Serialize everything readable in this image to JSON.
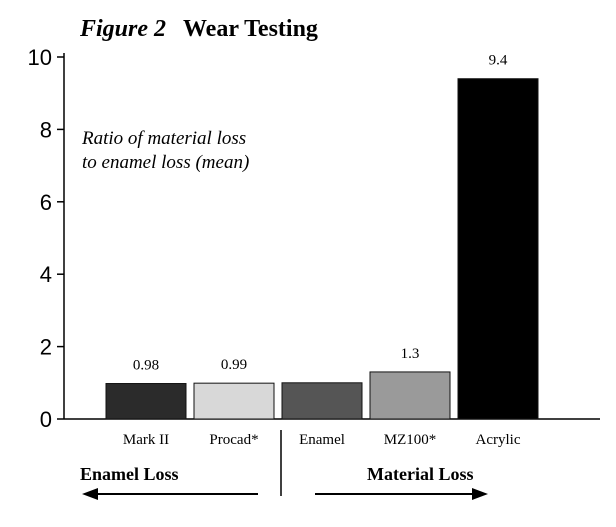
{
  "chart_data": {
    "type": "bar",
    "title_prefix": "Figure 2",
    "title": "Wear Testing",
    "annotation": [
      "Ratio of material loss",
      "to enamel loss (mean)"
    ],
    "xlabel": "",
    "ylabel": "",
    "ylim": [
      0,
      10
    ],
    "yticks": [
      0,
      2,
      4,
      6,
      8,
      10
    ],
    "categories": [
      "Mark II",
      "Procad*",
      "Enamel",
      "MZ100*",
      "Acrylic"
    ],
    "values": [
      0.98,
      0.99,
      1.0,
      1.3,
      9.4
    ],
    "value_labels": [
      "0.98",
      "0.99",
      "",
      "1.3",
      "9.4"
    ],
    "bar_colors": [
      "#2b2b2b",
      "#d8d8d8",
      "#555555",
      "#9a9a9a",
      "#000000"
    ],
    "groups": [
      {
        "label": "Enamel Loss",
        "direction": "left"
      },
      {
        "label": "Material Loss",
        "direction": "right"
      }
    ],
    "grid": false
  }
}
